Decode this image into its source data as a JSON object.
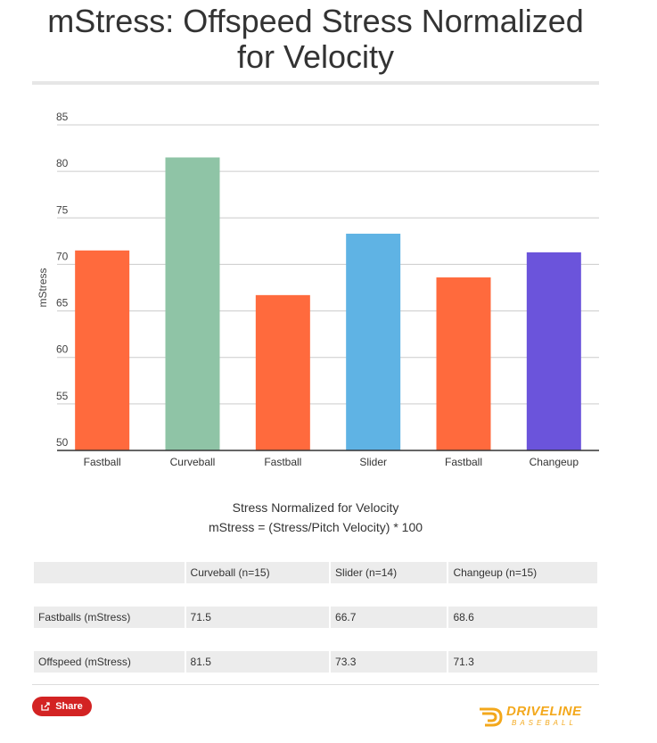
{
  "chart_data": {
    "type": "bar",
    "title": "mStress: Offspeed Stress Normalized for Velocity",
    "ylabel": "mStress",
    "xlabel": "",
    "ylim": [
      50,
      85
    ],
    "yticks": [
      50,
      55,
      60,
      65,
      70,
      75,
      80,
      85
    ],
    "grid": true,
    "categories": [
      "Fastball",
      "Curveball",
      "Fastball",
      "Slider",
      "Fastball",
      "Changeup"
    ],
    "values": [
      71.5,
      81.5,
      66.7,
      73.3,
      68.6,
      71.3
    ],
    "colors": [
      "#ff6a3d",
      "#8fc4a6",
      "#ff6a3d",
      "#5fb3e4",
      "#ff6a3d",
      "#6b54db"
    ]
  },
  "caption": {
    "line1": "Stress Normalized for Velocity",
    "line2": "mStress = (Stress/Pitch Velocity) * 100"
  },
  "table": {
    "header": [
      "",
      "Curveball (n=15)",
      "Slider (n=14)",
      "Changeup (n=15)"
    ],
    "rows": [
      [
        "Fastballs (mStress)",
        "71.5",
        "66.7",
        "68.6"
      ],
      [
        "Offspeed (mStress)",
        "81.5",
        "73.3",
        "71.3"
      ]
    ]
  },
  "share": {
    "label": "Share",
    "icon": "share-icon"
  },
  "logo": {
    "word": "DRIVELINE",
    "sub": "BASEBALL",
    "icon": "driveline-logo-icon"
  }
}
